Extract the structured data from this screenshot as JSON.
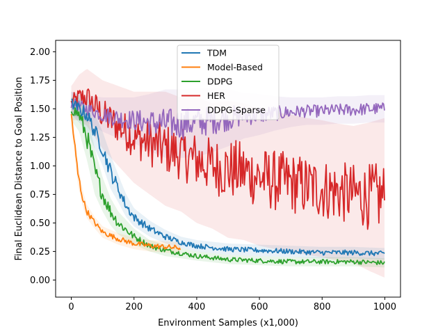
{
  "chart_data": {
    "type": "line",
    "title": "",
    "xlabel": "Environment Samples (x1,000)",
    "ylabel": "Final Euclidean Distance to Goal Position",
    "xlim": [
      -50,
      1050
    ],
    "ylim": [
      -0.15,
      2.1
    ],
    "x_ticks": [
      0,
      200,
      400,
      600,
      800,
      1000
    ],
    "y_ticks": [
      0.0,
      0.25,
      0.5,
      0.75,
      1.0,
      1.25,
      1.5,
      1.75,
      2.0
    ],
    "x_tick_labels": [
      "0",
      "200",
      "400",
      "600",
      "800",
      "1000"
    ],
    "y_tick_labels": [
      "0.00",
      "0.25",
      "0.50",
      "0.75",
      "1.00",
      "1.25",
      "1.50",
      "1.75",
      "2.00"
    ],
    "grid": false,
    "legend_position": "top-center",
    "series": [
      {
        "name": "TDM",
        "color": "#1f77b4",
        "x": [
          0,
          25,
          50,
          75,
          100,
          125,
          150,
          175,
          200,
          250,
          300,
          350,
          400,
          500,
          600,
          700,
          800,
          900,
          1000
        ],
        "y": [
          1.55,
          1.5,
          1.45,
          1.3,
          1.15,
          0.95,
          0.8,
          0.65,
          0.55,
          0.45,
          0.38,
          0.33,
          0.3,
          0.27,
          0.26,
          0.25,
          0.24,
          0.24,
          0.23
        ],
        "band": [
          0.1,
          0.12,
          0.15,
          0.15,
          0.15,
          0.15,
          0.12,
          0.1,
          0.08,
          0.07,
          0.06,
          0.05,
          0.05,
          0.05,
          0.05,
          0.05,
          0.05,
          0.05,
          0.05
        ]
      },
      {
        "name": "Model-Based",
        "color": "#ff7f0e",
        "x": [
          0,
          10,
          20,
          30,
          40,
          50,
          75,
          100,
          150,
          200,
          250,
          300,
          350
        ],
        "y": [
          1.45,
          1.2,
          0.95,
          0.8,
          0.68,
          0.6,
          0.5,
          0.42,
          0.36,
          0.32,
          0.3,
          0.29,
          0.28
        ],
        "band": [
          0.1,
          0.1,
          0.1,
          0.08,
          0.07,
          0.06,
          0.05,
          0.05,
          0.05,
          0.05,
          0.05,
          0.05,
          0.05
        ]
      },
      {
        "name": "DDPG",
        "color": "#2ca02c",
        "x": [
          0,
          25,
          50,
          75,
          100,
          125,
          150,
          200,
          250,
          300,
          400,
          500,
          600,
          700,
          800,
          900,
          1000
        ],
        "y": [
          1.5,
          1.45,
          1.25,
          0.95,
          0.75,
          0.6,
          0.5,
          0.38,
          0.3,
          0.26,
          0.21,
          0.18,
          0.17,
          0.16,
          0.16,
          0.16,
          0.15
        ],
        "band": [
          0.1,
          0.15,
          0.2,
          0.2,
          0.15,
          0.12,
          0.1,
          0.07,
          0.05,
          0.05,
          0.04,
          0.04,
          0.04,
          0.04,
          0.04,
          0.04,
          0.04
        ]
      },
      {
        "name": "HER",
        "color": "#d62728",
        "x": [
          0,
          25,
          50,
          100,
          150,
          200,
          250,
          300,
          350,
          400,
          450,
          500,
          550,
          600,
          650,
          700,
          750,
          800,
          850,
          900,
          950,
          1000
        ],
        "y": [
          1.55,
          1.6,
          1.6,
          1.45,
          1.35,
          1.25,
          1.2,
          1.15,
          1.1,
          1.05,
          1.0,
          0.97,
          0.95,
          0.9,
          0.87,
          0.85,
          0.82,
          0.8,
          0.77,
          0.75,
          0.73,
          0.72
        ],
        "band": [
          0.15,
          0.2,
          0.25,
          0.3,
          0.35,
          0.4,
          0.45,
          0.5,
          0.5,
          0.55,
          0.55,
          0.6,
          0.6,
          0.6,
          0.6,
          0.6,
          0.6,
          0.6,
          0.6,
          0.6,
          0.65,
          0.7
        ]
      },
      {
        "name": "DDPG-Sparse",
        "color": "#9467bd",
        "x": [
          0,
          50,
          100,
          150,
          200,
          250,
          300,
          350,
          400,
          450,
          500,
          550,
          600,
          650,
          700,
          750,
          800,
          850,
          900,
          950,
          1000
        ],
        "y": [
          1.55,
          1.5,
          1.45,
          1.42,
          1.4,
          1.38,
          1.37,
          1.37,
          1.38,
          1.4,
          1.42,
          1.44,
          1.45,
          1.46,
          1.47,
          1.48,
          1.48,
          1.49,
          1.49,
          1.5,
          1.5
        ],
        "band": [
          0.1,
          0.12,
          0.15,
          0.18,
          0.2,
          0.25,
          0.3,
          0.3,
          0.3,
          0.28,
          0.25,
          0.2,
          0.18,
          0.15,
          0.13,
          0.12,
          0.12,
          0.12,
          0.12,
          0.12,
          0.12
        ]
      }
    ]
  }
}
